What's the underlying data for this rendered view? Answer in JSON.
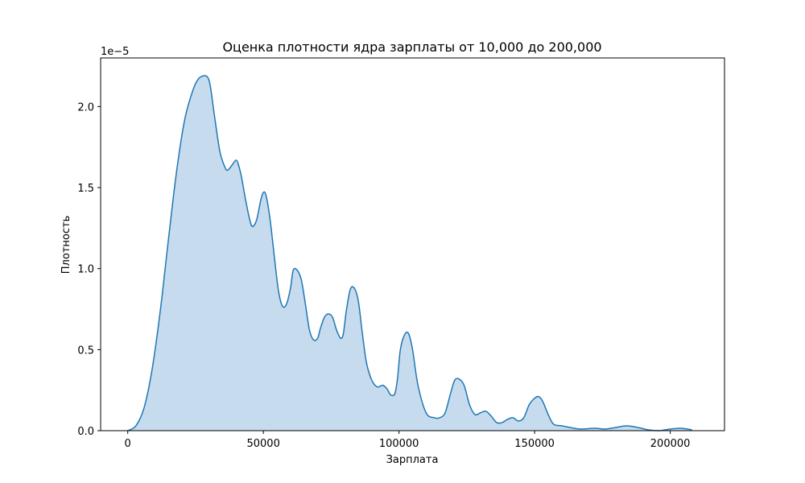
{
  "chart_data": {
    "type": "area",
    "title": "Оценка плотности ядра зарплаты от 10,000 до 200,000",
    "xlabel": "Зарплата",
    "ylabel": "Плотность",
    "y_offset_label": "1e−5",
    "xlim": [
      -10000,
      220000
    ],
    "ylim": [
      0,
      2.3
    ],
    "x_ticks": [
      0,
      50000,
      100000,
      150000,
      200000
    ],
    "x_tick_labels": [
      "0",
      "50000",
      "100000",
      "150000",
      "200000"
    ],
    "y_ticks": [
      0,
      0.5,
      1.0,
      1.5,
      2.0
    ],
    "y_tick_labels": [
      "0.0",
      "0.5",
      "1.0",
      "1.5",
      "2.0"
    ],
    "grid": false,
    "colors": {
      "line": "#1f77b4",
      "fill": "#c6dbee"
    },
    "series": [
      {
        "x": [
          0,
          3000,
          6000,
          9000,
          12000,
          15000,
          18000,
          21000,
          24000,
          26000,
          28000,
          29500,
          30500,
          32000,
          34000,
          36000,
          37000,
          38500,
          40000,
          41000,
          42000,
          43500,
          45000,
          46000,
          47500,
          49000,
          50000,
          51000,
          52500,
          54000,
          55500,
          57000,
          58500,
          60000,
          61000,
          62500,
          64000,
          65500,
          67000,
          68500,
          70000,
          71000,
          72500,
          74000,
          75500,
          77000,
          78500,
          79500,
          80500,
          82000,
          83500,
          85000,
          86500,
          88000,
          90000,
          92000,
          94000,
          95500,
          97000,
          98500,
          99500,
          100500,
          102000,
          103500,
          105000,
          107000,
          110000,
          113000,
          115000,
          117000,
          119000,
          120500,
          122000,
          124000,
          126000,
          128000,
          130000,
          132000,
          134000,
          136000,
          138000,
          140000,
          142000,
          144000,
          146000,
          148000,
          150000,
          151500,
          153000,
          155000,
          157000,
          160000,
          163000,
          167000,
          172000,
          176000,
          180000,
          184000,
          188000,
          192000,
          196000,
          200000,
          204000,
          208000
        ],
        "y": [
          0.0,
          0.03,
          0.14,
          0.38,
          0.74,
          1.18,
          1.6,
          1.92,
          2.1,
          2.17,
          2.19,
          2.18,
          2.12,
          1.94,
          1.72,
          1.62,
          1.61,
          1.64,
          1.67,
          1.63,
          1.56,
          1.42,
          1.3,
          1.26,
          1.3,
          1.42,
          1.47,
          1.45,
          1.3,
          1.08,
          0.87,
          0.77,
          0.78,
          0.88,
          0.99,
          0.99,
          0.93,
          0.78,
          0.62,
          0.56,
          0.57,
          0.63,
          0.7,
          0.72,
          0.7,
          0.62,
          0.57,
          0.6,
          0.73,
          0.87,
          0.88,
          0.8,
          0.6,
          0.42,
          0.31,
          0.27,
          0.28,
          0.26,
          0.22,
          0.23,
          0.33,
          0.5,
          0.59,
          0.6,
          0.5,
          0.28,
          0.11,
          0.08,
          0.08,
          0.11,
          0.23,
          0.31,
          0.32,
          0.28,
          0.16,
          0.1,
          0.11,
          0.12,
          0.09,
          0.05,
          0.05,
          0.07,
          0.08,
          0.06,
          0.08,
          0.16,
          0.2,
          0.21,
          0.18,
          0.1,
          0.04,
          0.03,
          0.02,
          0.01,
          0.015,
          0.01,
          0.02,
          0.03,
          0.02,
          0.005,
          0.0,
          0.01,
          0.015,
          0.005
        ]
      }
    ]
  }
}
